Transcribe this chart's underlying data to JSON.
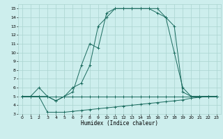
{
  "xlabel": "Humidex (Indice chaleur)",
  "xlim": [
    -0.5,
    23.5
  ],
  "ylim": [
    3,
    15.5
  ],
  "yticks": [
    3,
    4,
    5,
    6,
    7,
    8,
    9,
    10,
    11,
    12,
    13,
    14,
    15
  ],
  "xticks": [
    0,
    1,
    2,
    3,
    4,
    5,
    6,
    7,
    8,
    9,
    10,
    11,
    12,
    13,
    14,
    15,
    16,
    17,
    18,
    19,
    20,
    21,
    22,
    23
  ],
  "bg_color": "#cdeeed",
  "line_color": "#1a6b5e",
  "grid_color": "#aad4d0",
  "line1_x": [
    0,
    1,
    2,
    3,
    4,
    5,
    6,
    7,
    8,
    9,
    10,
    11,
    12,
    13,
    14,
    15,
    16,
    17,
    18,
    19,
    20,
    21,
    22,
    23
  ],
  "line1_y": [
    5,
    5,
    6,
    5,
    4.5,
    5,
    5.5,
    8.5,
    11,
    10.5,
    14.5,
    15,
    15,
    15,
    15,
    15,
    15,
    14,
    13,
    5.5,
    5,
    5,
    5,
    5
  ],
  "line2_x": [
    0,
    1,
    2,
    3,
    4,
    5,
    6,
    7,
    8,
    9,
    10,
    11,
    12,
    13,
    14,
    15,
    16,
    17,
    18,
    19,
    20,
    21,
    22,
    23
  ],
  "line2_y": [
    5,
    5,
    5,
    5,
    4.5,
    5,
    6,
    6.5,
    8.5,
    13,
    14,
    15,
    15,
    15,
    15,
    15,
    14.5,
    14,
    10,
    6,
    5,
    5,
    5,
    5
  ],
  "line3_x": [
    0,
    1,
    2,
    3,
    4,
    5,
    6,
    7,
    8,
    9,
    10,
    11,
    12,
    13,
    14,
    15,
    16,
    17,
    18,
    19,
    20,
    21,
    22,
    23
  ],
  "line3_y": [
    5,
    5,
    5,
    3.2,
    3.2,
    3.2,
    3.3,
    3.4,
    3.5,
    3.6,
    3.7,
    3.8,
    3.9,
    4.0,
    4.1,
    4.2,
    4.3,
    4.4,
    4.5,
    4.6,
    4.8,
    4.9,
    5.0,
    5.0
  ],
  "line4_x": [
    0,
    1,
    2,
    3,
    4,
    5,
    6,
    7,
    8,
    9,
    10,
    11,
    12,
    13,
    14,
    15,
    16,
    17,
    18,
    19,
    20,
    21,
    22,
    23
  ],
  "line4_y": [
    5,
    5,
    5,
    5,
    5,
    5,
    5,
    5,
    5,
    5,
    5,
    5,
    5,
    5,
    5,
    5,
    5,
    5,
    5,
    5,
    5,
    5,
    5,
    5
  ]
}
